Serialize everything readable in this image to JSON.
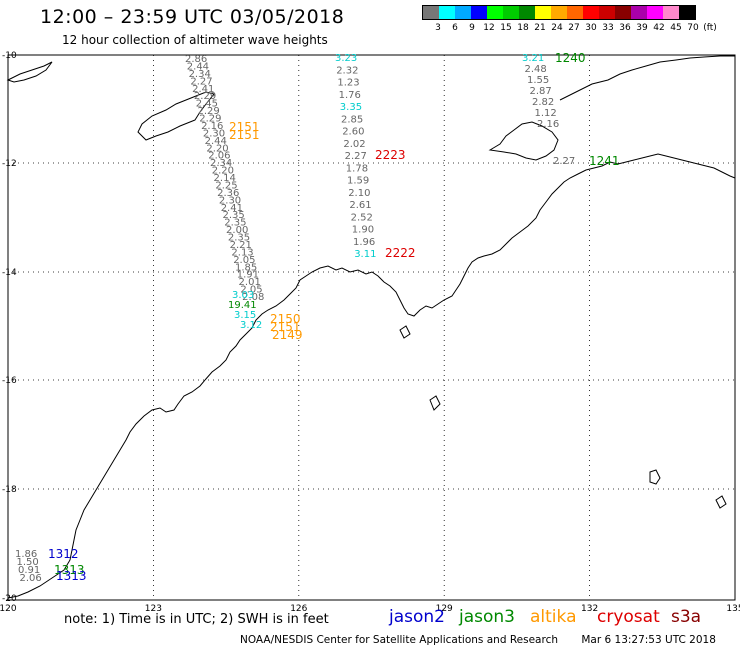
{
  "header": {
    "title": "12:00 – 23:59 UTC 03/05/2018",
    "subtitle": "12 hour collection of altimeter wave heights"
  },
  "color_scale": {
    "colors": [
      "#777777",
      "#00ffff",
      "#00aaff",
      "#0000ff",
      "#00ff00",
      "#00cc00",
      "#008800",
      "#ffff00",
      "#ffaa00",
      "#ff6600",
      "#ff0000",
      "#cc0000",
      "#880000",
      "#aa00aa",
      "#ff00ff",
      "#ff88cc",
      "#000000"
    ],
    "labels": [
      "3",
      "6",
      "9",
      "12",
      "15",
      "18",
      "21",
      "24",
      "27",
      "30",
      "33",
      "36",
      "39",
      "42",
      "45",
      "70",
      "(ft)"
    ]
  },
  "map": {
    "lon_ticks": [
      "120",
      "123",
      "126",
      "129",
      "132",
      "135"
    ],
    "lat_ticks": [
      "-10",
      "-12",
      "-14",
      "-16",
      "-18",
      "-20"
    ],
    "tracks": [
      {
        "name": "west-track",
        "values": [
          "2.86",
          "2.44",
          "2.34",
          "2.27",
          "2.41",
          "2.29",
          "2.45",
          "2.29",
          "2.29",
          "2.16",
          "2.30",
          "2.44",
          "2.20",
          "2.06",
          "2.34",
          "2.20",
          "2.14",
          "2.25",
          "2.36",
          "2.30",
          "2.41",
          "2.35",
          "2.35",
          "2.00",
          "2.35",
          "2.21",
          "2.13",
          "2.05",
          "1.85",
          "1.91",
          "2.01",
          "2.05",
          "2.08"
        ],
        "cyan_values": [
          "3.03",
          "3.15",
          "3.12"
        ],
        "highlight": "19.41"
      },
      {
        "name": "central-track",
        "values": [
          "3.23",
          "2.32",
          "1.23",
          "1.76",
          "3.35",
          "2.85",
          "2.60",
          "2.02",
          "2.27",
          "1.78",
          "1.59",
          "2.10",
          "2.61",
          "2.52",
          "1.90",
          "1.96",
          "3.11"
        ]
      },
      {
        "name": "east-track",
        "values": [
          "3.21",
          "2.48",
          "1.55",
          "2.87",
          "2.82",
          "1.12",
          "2.16",
          "2.27"
        ]
      },
      {
        "name": "south-track",
        "values": [
          "1.86",
          "1.50",
          "0.91",
          "2.06"
        ]
      }
    ],
    "pass_times": [
      {
        "label": "2151",
        "color": "#ff9900"
      },
      {
        "label": "2151",
        "color": "#ff9900"
      },
      {
        "label": "2223",
        "color": "#dd0000"
      },
      {
        "label": "2222",
        "color": "#dd0000"
      },
      {
        "label": "1240",
        "color": "#008800"
      },
      {
        "label": "1241",
        "color": "#008800"
      },
      {
        "label": "2150",
        "color": "#ff9900"
      },
      {
        "label": "2151",
        "color": "#ff9900"
      },
      {
        "label": "2149",
        "color": "#ff9900"
      },
      {
        "label": "1312",
        "color": "#0000cc"
      },
      {
        "label": "1313",
        "color": "#008800"
      },
      {
        "label": "1313",
        "color": "#0000cc"
      }
    ]
  },
  "footer": {
    "note": "note: 1) Time is in UTC; 2) SWH is in feet",
    "legend": [
      {
        "label": "jason2",
        "color": "#0000cc"
      },
      {
        "label": "jason3",
        "color": "#008800"
      },
      {
        "label": "altika",
        "color": "#ff9900"
      },
      {
        "label": "cryosat",
        "color": "#dd0000"
      },
      {
        "label": "s3a",
        "color": "#880000"
      }
    ],
    "credit": "NOAA/NESDIS Center for Satellite Applications and Research",
    "timestamp": "Mar  6 13:27:53 UTC 2018"
  }
}
